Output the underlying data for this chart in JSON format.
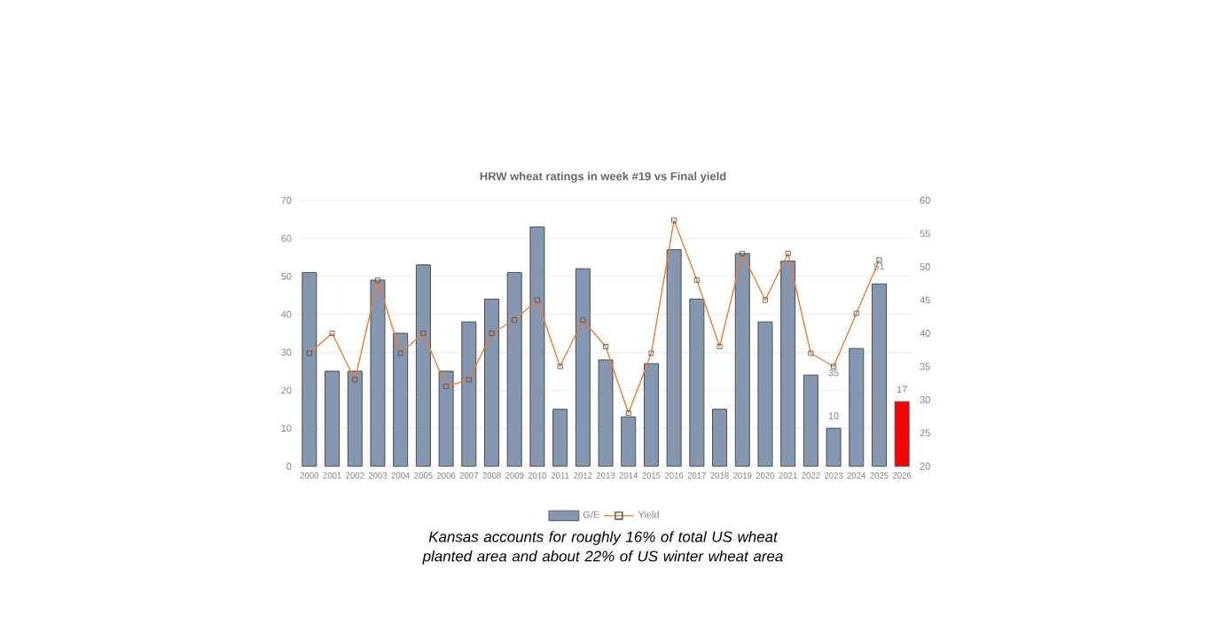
{
  "chart_data": {
    "type": "bar",
    "title": "HRW wheat ratings in week #19 vs Final yield",
    "categories": [
      "2000",
      "2001",
      "2002",
      "2003",
      "2004",
      "2005",
      "2006",
      "2007",
      "2008",
      "2009",
      "2010",
      "2011",
      "2012",
      "2013",
      "2014",
      "2015",
      "2016",
      "2017",
      "2018",
      "2019",
      "2020",
      "2021",
      "2022",
      "2023",
      "2024",
      "2025",
      "2026"
    ],
    "series": [
      {
        "name": "G/E",
        "colors": [
          "#8496b0",
          "#8496b0",
          "#8496b0",
          "#8496b0",
          "#8496b0",
          "#8496b0",
          "#8496b0",
          "#8496b0",
          "#8496b0",
          "#8496b0",
          "#8496b0",
          "#8496b0",
          "#8496b0",
          "#8496b0",
          "#8496b0",
          "#8496b0",
          "#8496b0",
          "#8496b0",
          "#8496b0",
          "#8496b0",
          "#8496b0",
          "#8496b0",
          "#8496b0",
          "#8496b0",
          "#8496b0",
          "#8496b0",
          "#ff0000"
        ],
        "values": [
          51,
          25,
          25,
          49,
          35,
          53,
          25,
          38,
          44,
          51,
          63,
          15,
          52,
          28,
          13,
          27,
          57,
          44,
          15,
          56,
          38,
          54,
          24,
          10,
          31,
          48,
          17
        ],
        "value_labels": [
          null,
          null,
          null,
          null,
          null,
          null,
          null,
          null,
          null,
          null,
          null,
          null,
          null,
          null,
          null,
          null,
          null,
          null,
          null,
          null,
          null,
          null,
          null,
          "10",
          null,
          null,
          "17"
        ]
      },
      {
        "name": "Yield",
        "type": "line",
        "axis": "y2",
        "color": "#ed7d31",
        "values": [
          37,
          40,
          33,
          48,
          37,
          40,
          32,
          33,
          40,
          42,
          45,
          35,
          42,
          38,
          28,
          37,
          57,
          48,
          38,
          52,
          45,
          52,
          37,
          35,
          43,
          51,
          null
        ],
        "value_labels": [
          null,
          null,
          null,
          null,
          null,
          null,
          null,
          null,
          null,
          null,
          null,
          null,
          null,
          null,
          null,
          null,
          null,
          null,
          null,
          null,
          null,
          null,
          null,
          "35",
          null,
          "51",
          null
        ]
      }
    ],
    "ylim": [
      0,
      70
    ],
    "yticks": [
      0,
      10,
      20,
      30,
      40,
      50,
      60,
      70
    ],
    "y2lim": [
      20,
      60
    ],
    "y2ticks": [
      20,
      25,
      30,
      35,
      40,
      45,
      50,
      55,
      60
    ],
    "grid": "y",
    "legend": "bottom",
    "marker": "square",
    "annotations": [
      "Kansas accounts for roughly 16% of total US wheat planted area and about 22% of US winter wheat area"
    ]
  }
}
